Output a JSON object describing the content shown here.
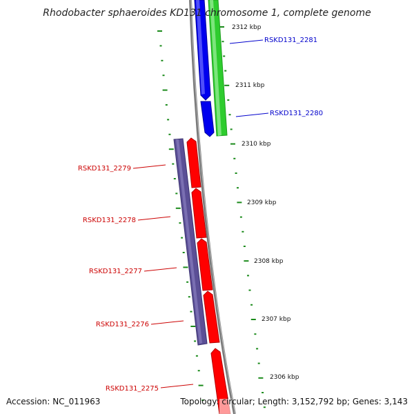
{
  "title": "Rhodobacter sphaeroides KD131 chromosome 1, complete genome",
  "footer": {
    "accession": "Accession: NC_011963",
    "topology": "Topology: circular; Length: 3,152,792 bp; Genes: 3,143"
  },
  "ticks": [
    "2312 kbp",
    "2311 kbp",
    "2310 kbp",
    "2309 kbp",
    "2308 kbp",
    "2307 kbp",
    "2306 kbp"
  ],
  "genes": {
    "forward": [
      {
        "label": "RSKD131_2281",
        "color": "#0000cc"
      },
      {
        "label": "RSKD131_2280",
        "color": "#0000cc"
      }
    ],
    "reverse": [
      {
        "label": "RSKD131_2279",
        "color": "#cc0000"
      },
      {
        "label": "RSKD131_2278",
        "color": "#cc0000"
      },
      {
        "label": "RSKD131_2277",
        "color": "#cc0000"
      },
      {
        "label": "RSKD131_2276",
        "color": "#cc0000"
      },
      {
        "label": "RSKD131_2275",
        "color": "#cc0000"
      }
    ]
  },
  "colors": {
    "backbone": "#808080",
    "forward_cds": "#0000ee",
    "reverse_cds": "#ff0000",
    "forward_feature": "#2ecc2e",
    "reverse_feature": "#5b4f96",
    "ticks": "#1a8a1a"
  }
}
